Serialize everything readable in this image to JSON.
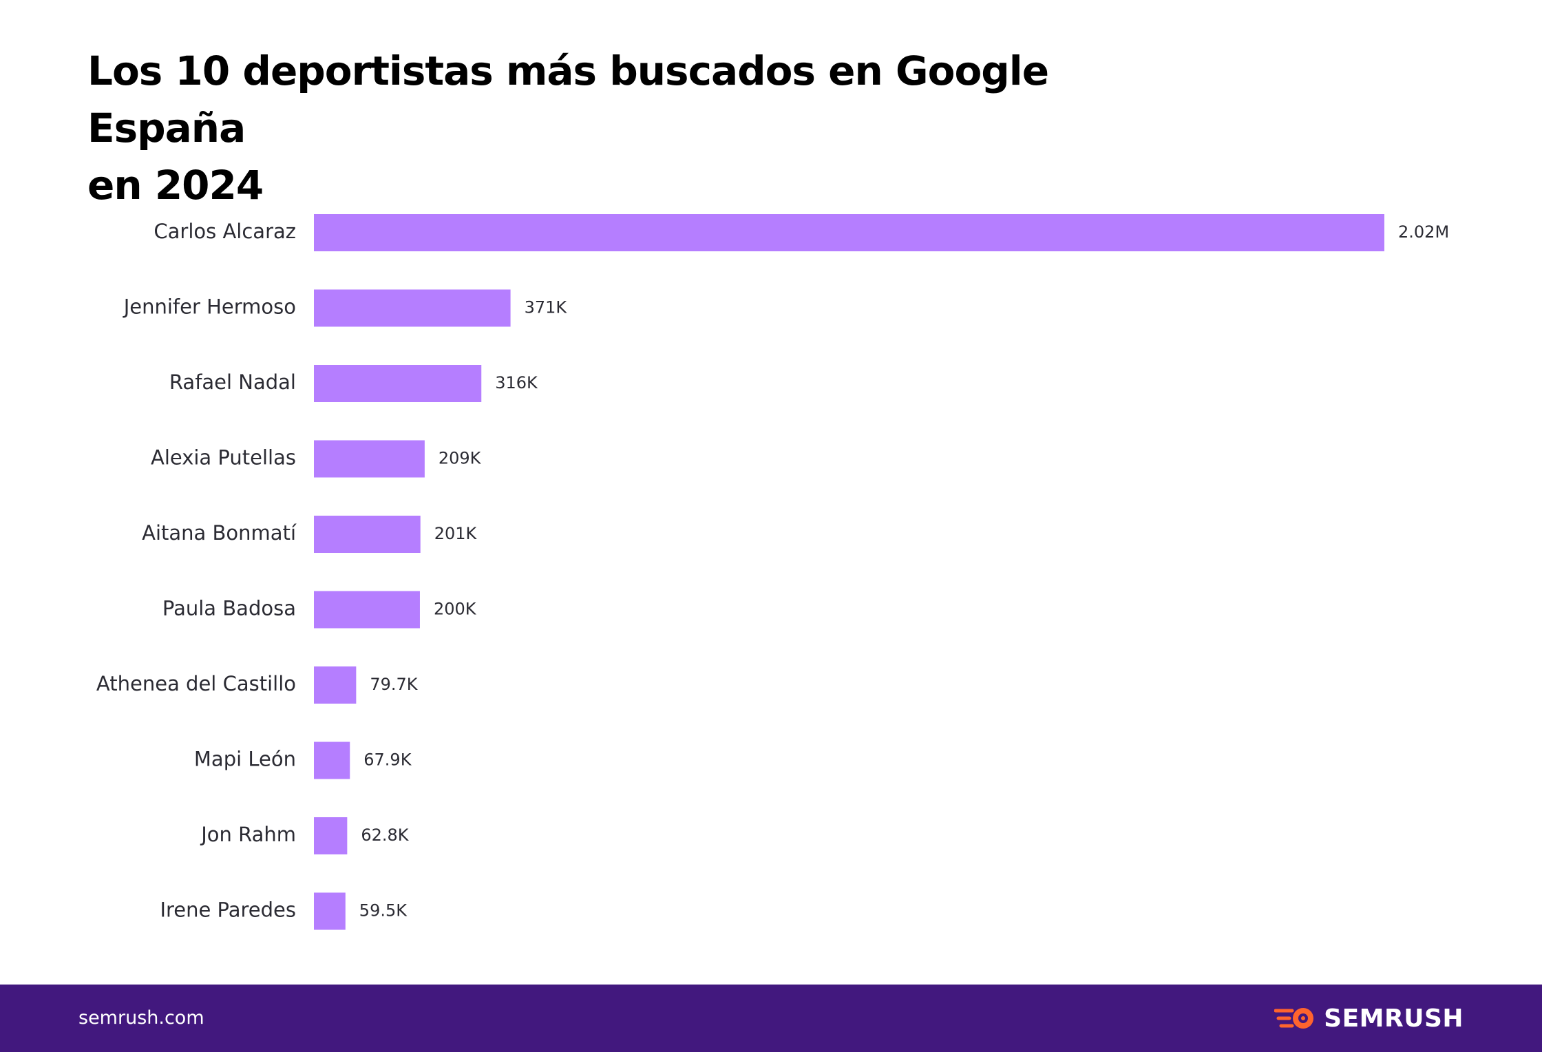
{
  "chart_data": {
    "type": "bar",
    "orientation": "horizontal",
    "title": "Los 10 deportistas más buscados en Google España en 2024",
    "title_lines": [
      "Los 10 deportistas más buscados en Google España",
      "en 2024"
    ],
    "categories": [
      "Carlos Alcaraz",
      "Jennifer Hermoso",
      "Rafael Nadal",
      "Alexia Putellas",
      "Aitana Bonmatí",
      "Paula Badosa",
      "Athenea del Castillo",
      "Mapi León",
      "Jon Rahm",
      "Irene Paredes"
    ],
    "values": [
      2020000,
      371000,
      316000,
      209000,
      201000,
      200000,
      79700,
      67900,
      62800,
      59500
    ],
    "value_labels": [
      "2.02M",
      "371K",
      "316K",
      "209K",
      "201K",
      "200K",
      "79.7K",
      "67.9K",
      "62.8K",
      "59.5K"
    ],
    "xlabel": "",
    "ylabel": "",
    "xlim": [
      0,
      2020000
    ],
    "grid": false,
    "legend": "none",
    "colors": {
      "bar": "#b57eff"
    }
  },
  "footer": {
    "site": "semrush.com",
    "brand": "SEMRUSH",
    "brand_icon": "semrush-flame-icon",
    "background": "#42187e",
    "icon_color": "#ff642d"
  }
}
